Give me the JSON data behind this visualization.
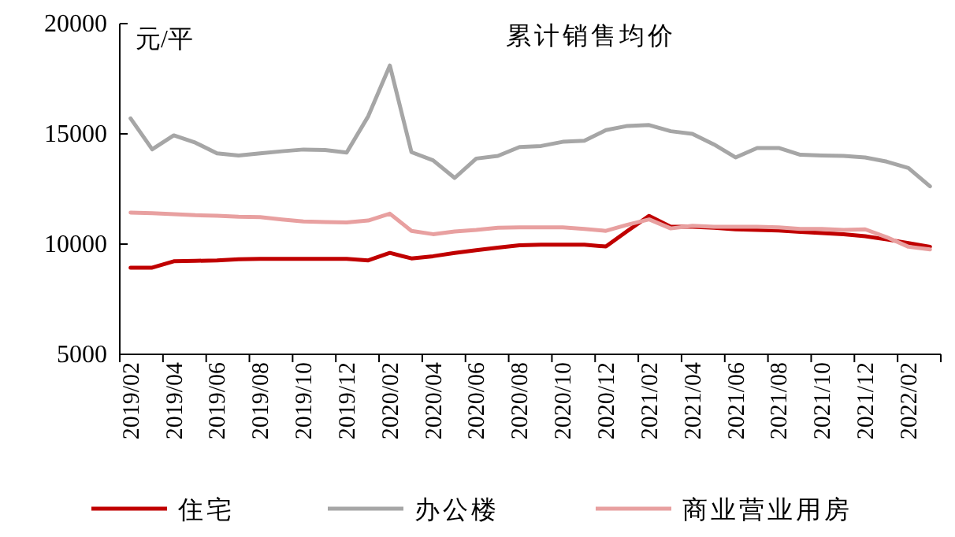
{
  "chart_data": {
    "type": "line",
    "title": "累计销售均价",
    "ylabel": "元/平",
    "categories": [
      "2019/02",
      null,
      "2019/04",
      null,
      "2019/06",
      null,
      "2019/08",
      null,
      "2019/10",
      null,
      "2019/12",
      null,
      "2020/02",
      null,
      "2020/04",
      null,
      "2020/06",
      null,
      "2020/08",
      null,
      "2020/10",
      null,
      "2020/12",
      null,
      "2021/02",
      null,
      "2021/04",
      null,
      "2021/06",
      null,
      "2021/08",
      null,
      "2021/10",
      null,
      "2021/12",
      null,
      "2022/02",
      null
    ],
    "ylim": [
      5000,
      20000
    ],
    "yticks": [
      5000,
      10000,
      15000,
      20000
    ],
    "grid": false,
    "legend": "bottom",
    "marker": "none",
    "line_style": "solid",
    "series": [
      {
        "name": "住宅",
        "color": "#c00000",
        "values": [
          8930,
          8930,
          9220,
          9240,
          9260,
          9310,
          9330,
          9330,
          9330,
          9330,
          9330,
          9260,
          9600,
          9350,
          9450,
          9600,
          9720,
          9840,
          9950,
          9970,
          9970,
          9970,
          9890,
          10600,
          11280,
          10790,
          10790,
          10740,
          10670,
          10640,
          10620,
          10550,
          10500,
          10450,
          10360,
          10210,
          10050,
          9880
        ]
      },
      {
        "name": "办公楼",
        "color": "#a6a6a6",
        "values": [
          15700,
          14300,
          14930,
          14600,
          14120,
          14020,
          14120,
          14210,
          14290,
          14270,
          14150,
          15800,
          18100,
          14170,
          13800,
          13000,
          13880,
          14000,
          14400,
          14450,
          14640,
          14690,
          15170,
          15360,
          15400,
          15120,
          15000,
          14520,
          13930,
          14360,
          14360,
          14050,
          14020,
          14000,
          13930,
          13740,
          13450,
          12620
        ]
      },
      {
        "name": "商业营业用房",
        "color": "#e8a0a0",
        "values": [
          11430,
          11400,
          11360,
          11310,
          11290,
          11240,
          11220,
          11120,
          11030,
          11000,
          10980,
          11070,
          11380,
          10600,
          10450,
          10570,
          10640,
          10740,
          10760,
          10760,
          10760,
          10690,
          10600,
          10880,
          11120,
          10710,
          10830,
          10790,
          10790,
          10790,
          10760,
          10690,
          10690,
          10640,
          10670,
          10310,
          9880,
          9760
        ]
      }
    ]
  }
}
